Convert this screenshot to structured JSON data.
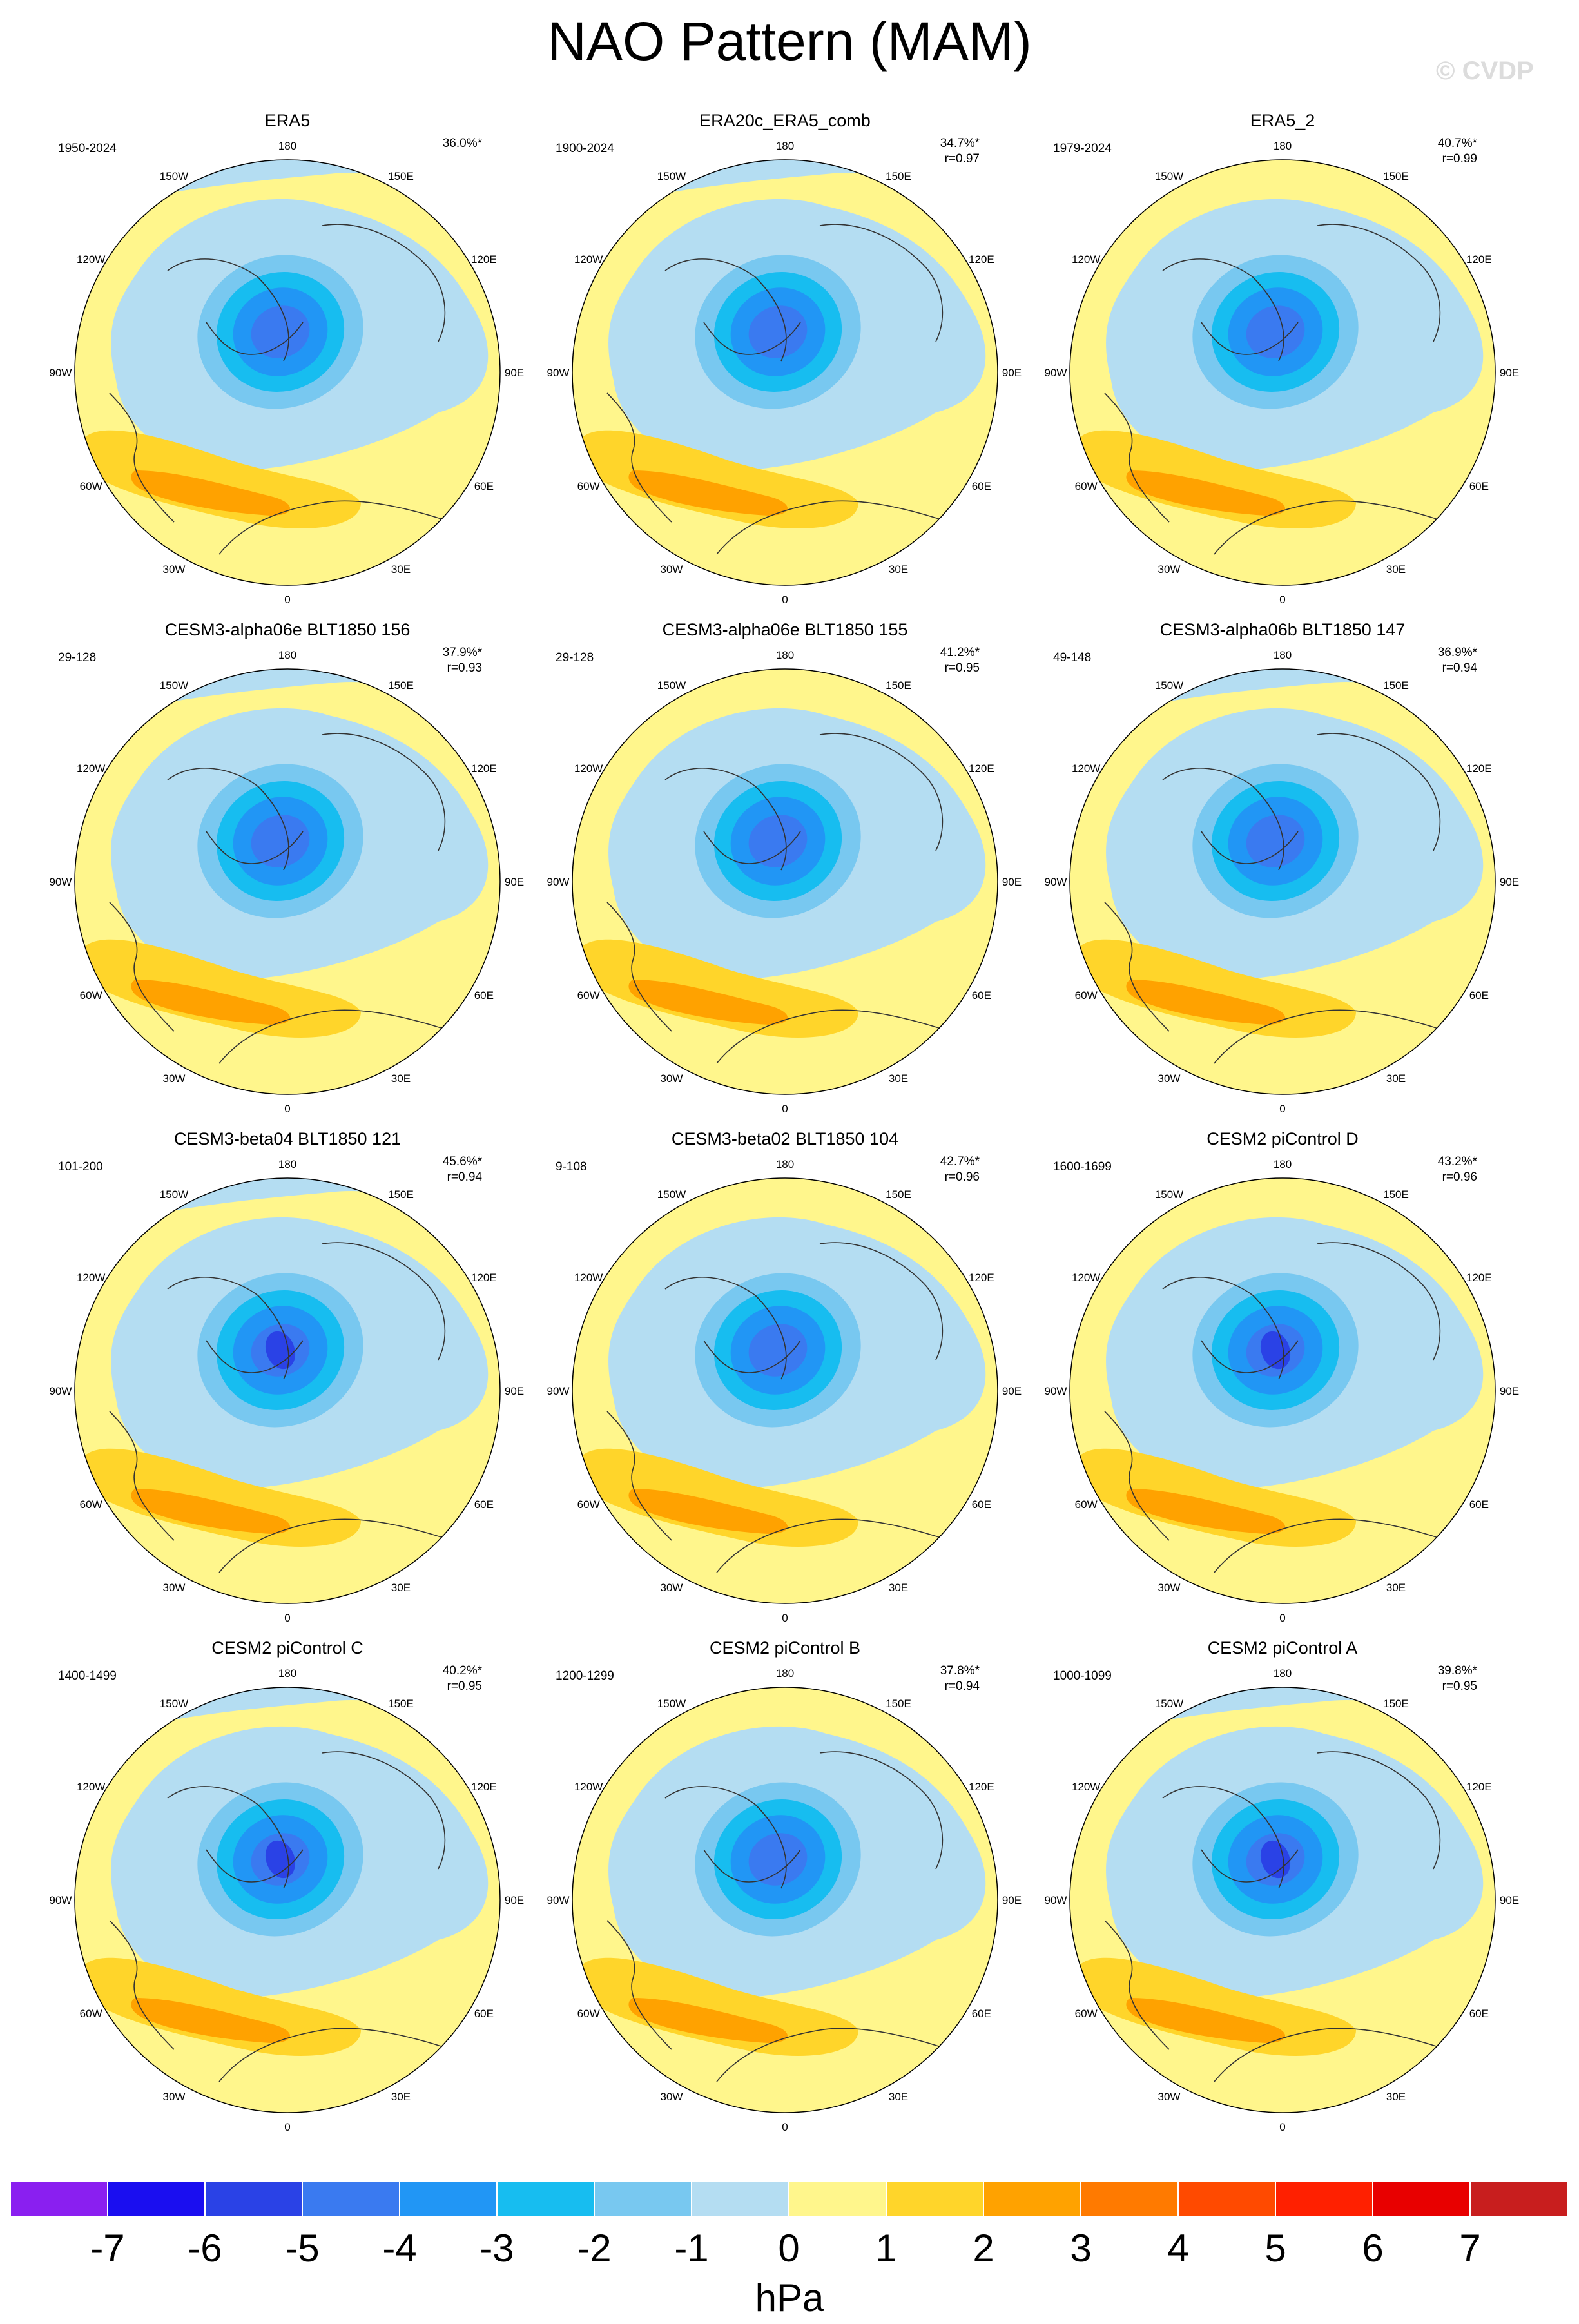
{
  "title": "NAO Pattern (MAM)",
  "watermark": "© CVDP",
  "colors": {
    "neg7": "#8a1ff0",
    "neg6": "#1a0ef0",
    "neg5": "#2a42e6",
    "neg4": "#3a7af0",
    "neg3": "#2196f5",
    "neg2": "#17bdf0",
    "neg1": "#78c8f0",
    "neg0": "#b4ddf2",
    "pos0": "#fff68c",
    "pos1": "#ffd52a",
    "pos2": "#ffa200",
    "pos3": "#ff7a00",
    "pos4": "#ff4a00",
    "pos5": "#ff2000",
    "pos6": "#e80000",
    "pos7": "#c81e1e",
    "pos8": "#ffb0b0"
  },
  "longitude_labels": [
    "180",
    "150E",
    "120E",
    "90E",
    "60E",
    "30E",
    "0",
    "30W",
    "60W",
    "90W",
    "120W",
    "150W"
  ],
  "panels": [
    {
      "title": "ERA5",
      "period": "1950-2024",
      "pct": "36.0%*",
      "r": ""
    },
    {
      "title": "ERA20c_ERA5_comb",
      "period": "1900-2024",
      "pct": "34.7%*",
      "r": "r=0.97"
    },
    {
      "title": "ERA5_2",
      "period": "1979-2024",
      "pct": "40.7%*",
      "r": "r=0.99"
    },
    {
      "title": "CESM3-alpha06e BLT1850 156",
      "period": "29-128",
      "pct": "37.9%*",
      "r": "r=0.93"
    },
    {
      "title": "CESM3-alpha06e BLT1850 155",
      "period": "29-128",
      "pct": "41.2%*",
      "r": "r=0.95"
    },
    {
      "title": "CESM3-alpha06b BLT1850 147",
      "period": "49-148",
      "pct": "36.9%*",
      "r": "r=0.94"
    },
    {
      "title": "CESM3-beta04 BLT1850 121",
      "period": "101-200",
      "pct": "45.6%*",
      "r": "r=0.94"
    },
    {
      "title": "CESM3-beta02 BLT1850 104",
      "period": "9-108",
      "pct": "42.7%*",
      "r": "r=0.96"
    },
    {
      "title": "CESM2 piControl D",
      "period": "1600-1699",
      "pct": "43.2%*",
      "r": "r=0.96"
    },
    {
      "title": "CESM2 piControl C",
      "period": "1400-1499",
      "pct": "40.2%*",
      "r": "r=0.95"
    },
    {
      "title": "CESM2 piControl B",
      "period": "1200-1299",
      "pct": "37.8%*",
      "r": "r=0.94"
    },
    {
      "title": "CESM2 piControl A",
      "period": "1000-1099",
      "pct": "39.8%*",
      "r": "r=0.95"
    }
  ],
  "colorbar": {
    "ticks": [
      "-7",
      "-6",
      "-5",
      "-4",
      "-3",
      "-2",
      "-1",
      "0",
      "1",
      "2",
      "3",
      "4",
      "5",
      "6",
      "7"
    ],
    "units": "hPa"
  }
}
